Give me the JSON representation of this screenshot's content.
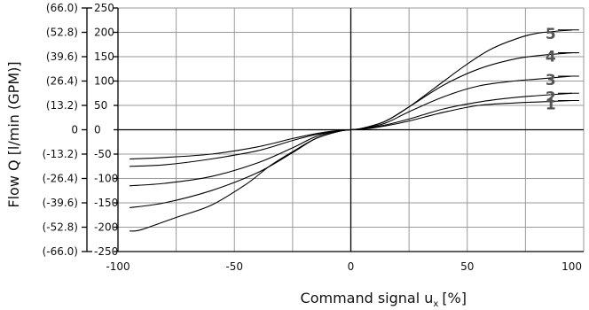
{
  "chart_data": {
    "type": "line",
    "xlabel": "Command signal u",
    "xlabel_sub": "x",
    "xlabel_unit": "[%]",
    "ylabel": "Flow Q [l/min (GPM)]",
    "xlim": [
      -100,
      100
    ],
    "ylim": [
      -250,
      250
    ],
    "grid": true,
    "x_ticks": [
      {
        "value": -100,
        "label": "-100"
      },
      {
        "value": -50,
        "label": "-50"
      },
      {
        "value": 0,
        "label": "0"
      },
      {
        "value": 50,
        "label": "50"
      },
      {
        "value": 100,
        "label": "100"
      }
    ],
    "y_ticks": [
      {
        "value": 250,
        "label": "250",
        "gpm": "(66.0)"
      },
      {
        "value": 200,
        "label": "200",
        "gpm": "(52.8)"
      },
      {
        "value": 150,
        "label": "150",
        "gpm": "(39.6)"
      },
      {
        "value": 100,
        "label": "100",
        "gpm": "(26.4)"
      },
      {
        "value": 50,
        "label": "50",
        "gpm": "(13.2)"
      },
      {
        "value": 0,
        "label": "0",
        "gpm": "0"
      },
      {
        "value": -50,
        "label": "-50",
        "gpm": "(-13.2)"
      },
      {
        "value": -100,
        "label": "-100",
        "gpm": "(-26.4)"
      },
      {
        "value": -150,
        "label": "-150",
        "gpm": "(-39.6)"
      },
      {
        "value": -200,
        "label": "-200",
        "gpm": "(-52.8)"
      },
      {
        "value": -250,
        "label": "-250",
        "gpm": "(-66.0)"
      }
    ],
    "series": [
      {
        "name": "1",
        "points": [
          [
            -95,
            -60
          ],
          [
            -80,
            -57
          ],
          [
            -60,
            -50
          ],
          [
            -40,
            -35
          ],
          [
            -25,
            -18
          ],
          [
            -15,
            -8
          ],
          [
            -5,
            -1
          ],
          [
            0,
            0
          ],
          [
            5,
            1
          ],
          [
            15,
            8
          ],
          [
            25,
            18
          ],
          [
            40,
            36
          ],
          [
            55,
            50
          ],
          [
            70,
            55
          ],
          [
            80,
            57
          ],
          [
            95,
            60
          ]
        ]
      },
      {
        "name": "2",
        "points": [
          [
            -95,
            -75
          ],
          [
            -80,
            -72
          ],
          [
            -60,
            -60
          ],
          [
            -40,
            -43
          ],
          [
            -25,
            -22
          ],
          [
            -15,
            -10
          ],
          [
            -5,
            -2
          ],
          [
            0,
            0
          ],
          [
            5,
            2
          ],
          [
            15,
            10
          ],
          [
            25,
            22
          ],
          [
            40,
            43
          ],
          [
            55,
            57
          ],
          [
            70,
            66
          ],
          [
            80,
            70
          ],
          [
            95,
            75
          ]
        ]
      },
      {
        "name": "3",
        "points": [
          [
            -95,
            -115
          ],
          [
            -80,
            -110
          ],
          [
            -60,
            -96
          ],
          [
            -40,
            -68
          ],
          [
            -25,
            -37
          ],
          [
            -15,
            -14
          ],
          [
            -5,
            -2
          ],
          [
            0,
            0
          ],
          [
            5,
            2
          ],
          [
            15,
            14
          ],
          [
            25,
            37
          ],
          [
            40,
            68
          ],
          [
            55,
            90
          ],
          [
            70,
            100
          ],
          [
            80,
            104
          ],
          [
            95,
            110
          ]
        ]
      },
      {
        "name": "4",
        "points": [
          [
            -95,
            -160
          ],
          [
            -80,
            -150
          ],
          [
            -60,
            -125
          ],
          [
            -40,
            -88
          ],
          [
            -25,
            -47
          ],
          [
            -15,
            -18
          ],
          [
            -5,
            -3
          ],
          [
            0,
            0
          ],
          [
            5,
            3
          ],
          [
            15,
            18
          ],
          [
            25,
            47
          ],
          [
            40,
            92
          ],
          [
            55,
            125
          ],
          [
            70,
            145
          ],
          [
            80,
            152
          ],
          [
            95,
            158
          ]
        ]
      },
      {
        "name": "5",
        "points": [
          [
            -95,
            -208
          ],
          [
            -90,
            -205
          ],
          [
            -75,
            -180
          ],
          [
            -60,
            -155
          ],
          [
            -45,
            -112
          ],
          [
            -35,
            -75
          ],
          [
            -25,
            -45
          ],
          [
            -15,
            -18
          ],
          [
            -5,
            -3
          ],
          [
            0,
            0
          ],
          [
            5,
            3
          ],
          [
            15,
            18
          ],
          [
            25,
            47
          ],
          [
            40,
            100
          ],
          [
            50,
            135
          ],
          [
            60,
            165
          ],
          [
            70,
            185
          ],
          [
            80,
            198
          ],
          [
            95,
            205
          ]
        ]
      }
    ]
  }
}
